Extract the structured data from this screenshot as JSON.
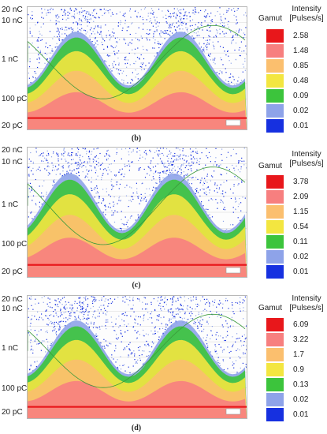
{
  "y_axis_labels": [
    "20 nC",
    "10 nC",
    "1 nC",
    "100 pC",
    "20 pC"
  ],
  "legend": {
    "gamut_title": "Gamut",
    "intensity_title_line1": "Intensity",
    "intensity_title_line2": "[Pulses/s]",
    "colors": [
      "#e8171b",
      "#f77f7f",
      "#fbbf6e",
      "#f3e640",
      "#3cc43c",
      "#8ea3e9",
      "#1630e0"
    ]
  },
  "chart_data": [
    {
      "type": "heatmap",
      "caption": "(b)",
      "y_ticks": [
        "20 nC",
        "10 nC",
        "1 nC",
        "100 pC",
        "20 pC"
      ],
      "y_scale": "log",
      "legend_values": [
        "2.58",
        "1.48",
        "0.85",
        "0.48",
        "0.09",
        "0.02",
        "0.01"
      ],
      "legend_colors": [
        "#e8171b",
        "#f77f7f",
        "#fbbf6e",
        "#f3e640",
        "#3cc43c",
        "#8ea3e9",
        "#1630e0"
      ],
      "grid": true,
      "legend_position": "right"
    },
    {
      "type": "heatmap",
      "caption": "(c)",
      "y_ticks": [
        "20 nC",
        "10 nC",
        "1 nC",
        "100 pC",
        "20 pC"
      ],
      "y_scale": "log",
      "legend_values": [
        "3.78",
        "2.09",
        "1.15",
        "0.54",
        "0.11",
        "0.02",
        "0.01"
      ],
      "legend_colors": [
        "#e8171b",
        "#f77f7f",
        "#fbbf6e",
        "#f3e640",
        "#3cc43c",
        "#8ea3e9",
        "#1630e0"
      ],
      "grid": true,
      "legend_position": "right"
    },
    {
      "type": "heatmap",
      "caption": "(d)",
      "y_ticks": [
        "20 nC",
        "10 nC",
        "1 nC",
        "100 pC",
        "20 pC"
      ],
      "y_scale": "log",
      "legend_values": [
        "6.09",
        "3.22",
        "1.7",
        "0.9",
        "0.13",
        "0.02",
        "0.01"
      ],
      "legend_colors": [
        "#e8171b",
        "#f77f7f",
        "#fbbf6e",
        "#f3e640",
        "#3cc43c",
        "#8ea3e9",
        "#1630e0"
      ],
      "grid": true,
      "legend_position": "right"
    }
  ]
}
